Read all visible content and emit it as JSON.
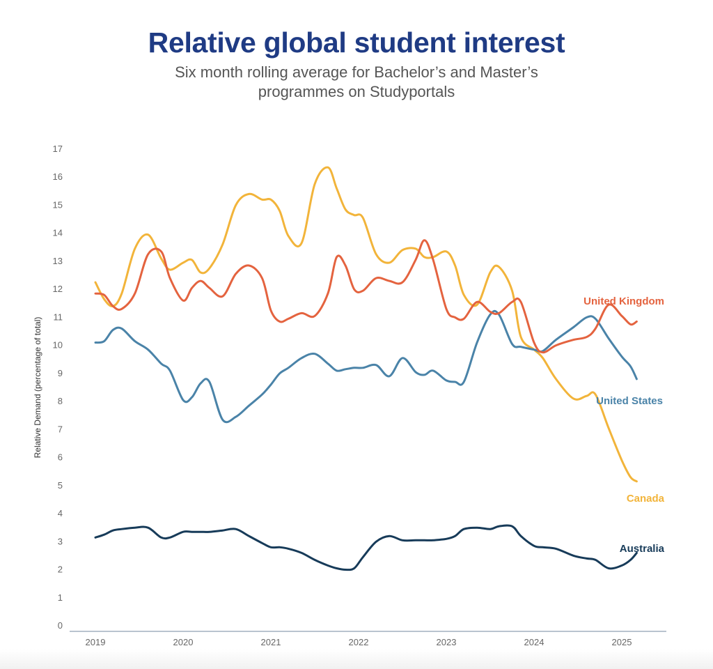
{
  "chart_data": {
    "type": "line",
    "title": "Relative global student interest",
    "subtitle_lines": [
      "Six month rolling average for Bachelor’s and Master’s",
      "programmes on Studyportals"
    ],
    "xlabel": "",
    "ylabel": "Relative Demand (percentage of total)",
    "xlim": [
      2018.95,
      2025.3
    ],
    "ylim": [
      0,
      17
    ],
    "y_ticks": [
      0,
      1,
      2,
      3,
      4,
      5,
      6,
      7,
      8,
      9,
      10,
      11,
      12,
      13,
      14,
      15,
      16,
      17
    ],
    "x_ticks": [
      {
        "value": 2019,
        "label": "2019"
      },
      {
        "value": 2020,
        "label": "2020"
      },
      {
        "value": 2021,
        "label": "2021"
      },
      {
        "value": 2022,
        "label": "2022"
      },
      {
        "value": 2023,
        "label": "2023"
      },
      {
        "value": 2024,
        "label": "2024"
      },
      {
        "value": 2025,
        "label": "2025"
      }
    ],
    "grid": false,
    "series": [
      {
        "name": "United Kingdom",
        "color": "#e4633f",
        "x": [
          2019.0,
          2019.1,
          2019.2,
          2019.3,
          2019.45,
          2019.6,
          2019.75,
          2019.85,
          2020.0,
          2020.1,
          2020.2,
          2020.3,
          2020.45,
          2020.6,
          2020.75,
          2020.9,
          2021.0,
          2021.1,
          2021.2,
          2021.35,
          2021.5,
          2021.65,
          2021.75,
          2021.85,
          2021.95,
          2022.05,
          2022.2,
          2022.35,
          2022.5,
          2022.65,
          2022.75,
          2022.85,
          2023.0,
          2023.1,
          2023.2,
          2023.35,
          2023.5,
          2023.6,
          2023.75,
          2023.85,
          2024.0,
          2024.1,
          2024.25,
          2024.45,
          2024.6,
          2024.7,
          2024.85,
          2025.0,
          2025.1,
          2025.17
        ],
        "values": [
          11.85,
          11.8,
          11.4,
          11.3,
          11.85,
          13.25,
          13.35,
          12.4,
          11.6,
          12.05,
          12.3,
          12.05,
          11.75,
          12.55,
          12.85,
          12.4,
          11.25,
          10.85,
          10.95,
          11.15,
          11.05,
          11.85,
          13.15,
          12.85,
          12.0,
          11.95,
          12.4,
          12.3,
          12.25,
          13.05,
          13.75,
          13.05,
          11.3,
          11.0,
          10.95,
          11.55,
          11.2,
          11.15,
          11.55,
          11.55,
          10.1,
          9.75,
          10.0,
          10.2,
          10.3,
          10.6,
          11.45,
          11.05,
          10.75,
          10.85
        ]
      },
      {
        "name": "United States",
        "color": "#4a83a8",
        "x": [
          2019.0,
          2019.1,
          2019.2,
          2019.3,
          2019.45,
          2019.6,
          2019.75,
          2019.85,
          2020.0,
          2020.1,
          2020.2,
          2020.3,
          2020.45,
          2020.6,
          2020.75,
          2020.9,
          2021.0,
          2021.1,
          2021.2,
          2021.35,
          2021.5,
          2021.65,
          2021.75,
          2021.85,
          2021.95,
          2022.05,
          2022.2,
          2022.35,
          2022.5,
          2022.65,
          2022.75,
          2022.85,
          2023.0,
          2023.1,
          2023.2,
          2023.35,
          2023.5,
          2023.6,
          2023.75,
          2023.85,
          2024.0,
          2024.1,
          2024.25,
          2024.45,
          2024.6,
          2024.7,
          2024.85,
          2025.0,
          2025.1,
          2025.17
        ],
        "values": [
          10.1,
          10.15,
          10.55,
          10.6,
          10.15,
          9.85,
          9.35,
          9.1,
          8.05,
          8.15,
          8.65,
          8.7,
          7.35,
          7.45,
          7.85,
          8.25,
          8.6,
          9.0,
          9.2,
          9.55,
          9.7,
          9.35,
          9.1,
          9.15,
          9.2,
          9.2,
          9.3,
          8.9,
          9.55,
          9.05,
          8.95,
          9.1,
          8.75,
          8.7,
          8.7,
          10.1,
          11.1,
          11.1,
          10.05,
          9.95,
          9.85,
          9.8,
          10.2,
          10.65,
          11.0,
          10.95,
          10.25,
          9.6,
          9.25,
          8.8
        ]
      },
      {
        "name": "Canada",
        "color": "#f2b43a",
        "x": [
          2019.0,
          2019.1,
          2019.2,
          2019.3,
          2019.45,
          2019.6,
          2019.75,
          2019.85,
          2020.0,
          2020.1,
          2020.2,
          2020.3,
          2020.45,
          2020.6,
          2020.75,
          2020.9,
          2021.0,
          2021.1,
          2021.2,
          2021.35,
          2021.5,
          2021.65,
          2021.75,
          2021.85,
          2021.95,
          2022.05,
          2022.2,
          2022.35,
          2022.5,
          2022.65,
          2022.75,
          2022.85,
          2023.0,
          2023.1,
          2023.2,
          2023.35,
          2023.5,
          2023.6,
          2023.75,
          2023.85,
          2024.0,
          2024.1,
          2024.25,
          2024.45,
          2024.6,
          2024.7,
          2024.85,
          2025.0,
          2025.1,
          2025.17
        ],
        "values": [
          12.25,
          11.65,
          11.4,
          11.85,
          13.45,
          13.95,
          13.1,
          12.7,
          12.95,
          13.05,
          12.6,
          12.75,
          13.6,
          15.0,
          15.4,
          15.2,
          15.2,
          14.8,
          13.9,
          13.65,
          15.75,
          16.35,
          15.6,
          14.85,
          14.65,
          14.55,
          13.25,
          12.95,
          13.4,
          13.45,
          13.15,
          13.15,
          13.35,
          12.85,
          11.8,
          11.45,
          12.6,
          12.8,
          11.95,
          10.3,
          9.85,
          9.55,
          8.8,
          8.1,
          8.2,
          8.25,
          7.05,
          5.9,
          5.3,
          5.15
        ]
      },
      {
        "name": "Australia",
        "color": "#173b59",
        "x": [
          2019.0,
          2019.1,
          2019.2,
          2019.3,
          2019.45,
          2019.6,
          2019.75,
          2019.85,
          2020.0,
          2020.1,
          2020.2,
          2020.3,
          2020.45,
          2020.6,
          2020.75,
          2020.9,
          2021.0,
          2021.1,
          2021.2,
          2021.35,
          2021.5,
          2021.65,
          2021.75,
          2021.85,
          2021.95,
          2022.05,
          2022.2,
          2022.35,
          2022.5,
          2022.65,
          2022.75,
          2022.85,
          2023.0,
          2023.1,
          2023.2,
          2023.35,
          2023.5,
          2023.6,
          2023.75,
          2023.85,
          2024.0,
          2024.1,
          2024.25,
          2024.45,
          2024.6,
          2024.7,
          2024.85,
          2025.0,
          2025.1,
          2025.17
        ],
        "values": [
          3.15,
          3.25,
          3.4,
          3.45,
          3.5,
          3.5,
          3.15,
          3.15,
          3.35,
          3.35,
          3.35,
          3.35,
          3.4,
          3.45,
          3.2,
          2.95,
          2.8,
          2.8,
          2.75,
          2.6,
          2.35,
          2.15,
          2.05,
          2.0,
          2.05,
          2.45,
          3.0,
          3.2,
          3.05,
          3.05,
          3.05,
          3.05,
          3.1,
          3.2,
          3.45,
          3.5,
          3.45,
          3.55,
          3.55,
          3.2,
          2.85,
          2.8,
          2.75,
          2.5,
          2.4,
          2.35,
          2.05,
          2.15,
          2.35,
          2.6
        ]
      }
    ]
  }
}
